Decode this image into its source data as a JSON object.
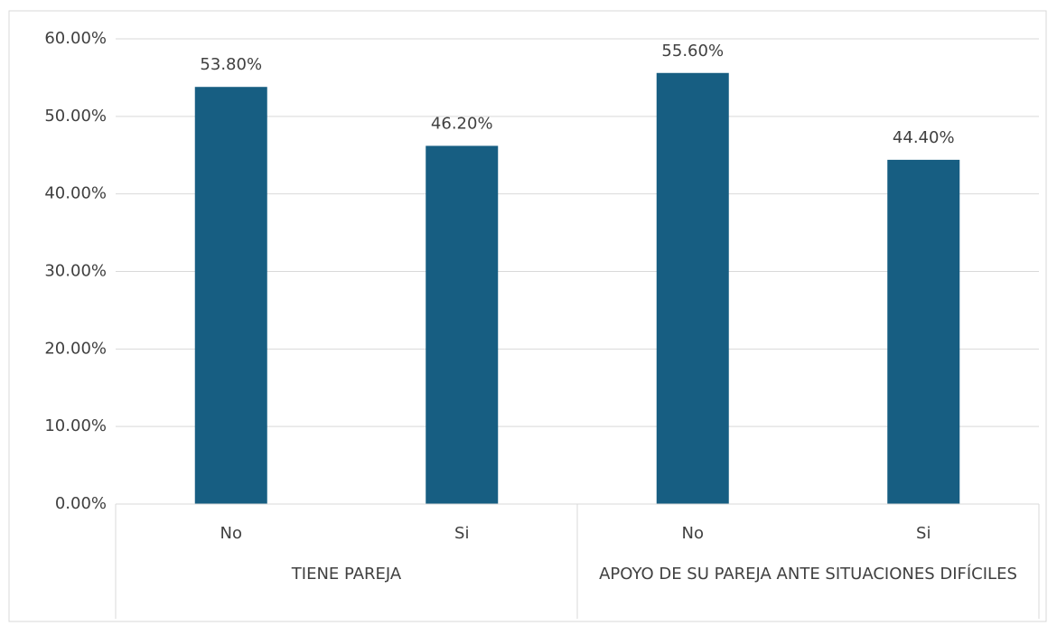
{
  "chart_data": {
    "type": "bar",
    "categories": [
      "No",
      "Si",
      "No",
      "Si"
    ],
    "groups": [
      "TIENE PAREJA",
      "APOYO DE SU PAREJA ANTE SITUACIONES DIFÍCILES"
    ],
    "values": [
      53.8,
      46.2,
      55.6,
      44.4
    ],
    "value_labels": [
      "53.80%",
      "46.20%",
      "55.60%",
      "44.40%"
    ],
    "color": "#175e82",
    "ylim": [
      0,
      60
    ],
    "yticks": [
      {
        "value": 0,
        "label": "0.00%"
      },
      {
        "value": 10,
        "label": "10.00%"
      },
      {
        "value": 20,
        "label": "20.00%"
      },
      {
        "value": 30,
        "label": "30.00%"
      },
      {
        "value": 40,
        "label": "40.00%"
      },
      {
        "value": 50,
        "label": "50.00%"
      },
      {
        "value": 60,
        "label": "60.00%"
      }
    ],
    "grid": true
  }
}
